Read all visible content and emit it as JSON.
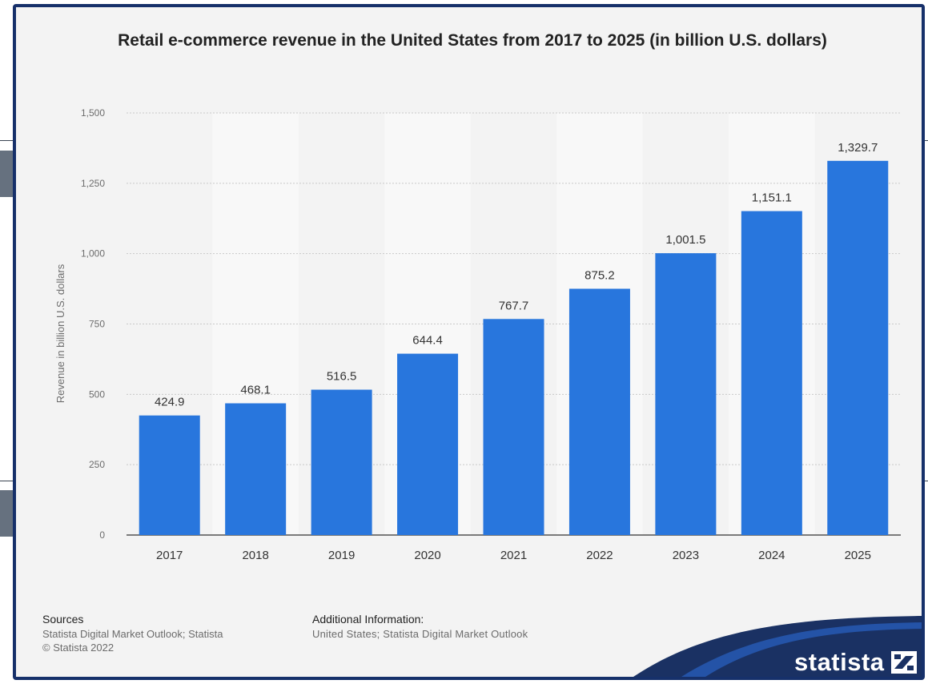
{
  "chart_data": {
    "type": "bar",
    "title": "Retail e-commerce revenue in the United States from 2017 to 2025 (in billion U.S. dollars)",
    "ylabel": "Revenue in billion U.S. dollars",
    "xlabel": "",
    "categories": [
      "2017",
      "2018",
      "2019",
      "2020",
      "2021",
      "2022",
      "2023",
      "2024",
      "2025"
    ],
    "values": [
      424.9,
      468.1,
      516.5,
      644.4,
      767.7,
      875.2,
      1001.5,
      1151.1,
      1329.7
    ],
    "value_labels": [
      "424.9",
      "468.1",
      "516.5",
      "644.4",
      "767.7",
      "875.2",
      "1,001.5",
      "1,151.1",
      "1,329.7"
    ],
    "ylim": [
      0,
      1500
    ],
    "yticks": [
      0,
      250,
      500,
      750,
      1000,
      1250,
      1500
    ],
    "ytick_labels": [
      "0",
      "250",
      "500",
      "750",
      "1,000",
      "1,250",
      "1,500"
    ],
    "grid": "horizontal dotted",
    "bar_color": "#2876dd",
    "legend": "none"
  },
  "footer": {
    "sources_heading": "Sources",
    "sources_line1": "Statista Digital Market Outlook; Statista",
    "sources_line2": "© Statista 2022",
    "additional_heading": "Additional Information:",
    "additional_line1": "United States; Statista Digital Market Outlook"
  },
  "logo": {
    "text": "statista",
    "icon": "statista-logo-icon"
  }
}
